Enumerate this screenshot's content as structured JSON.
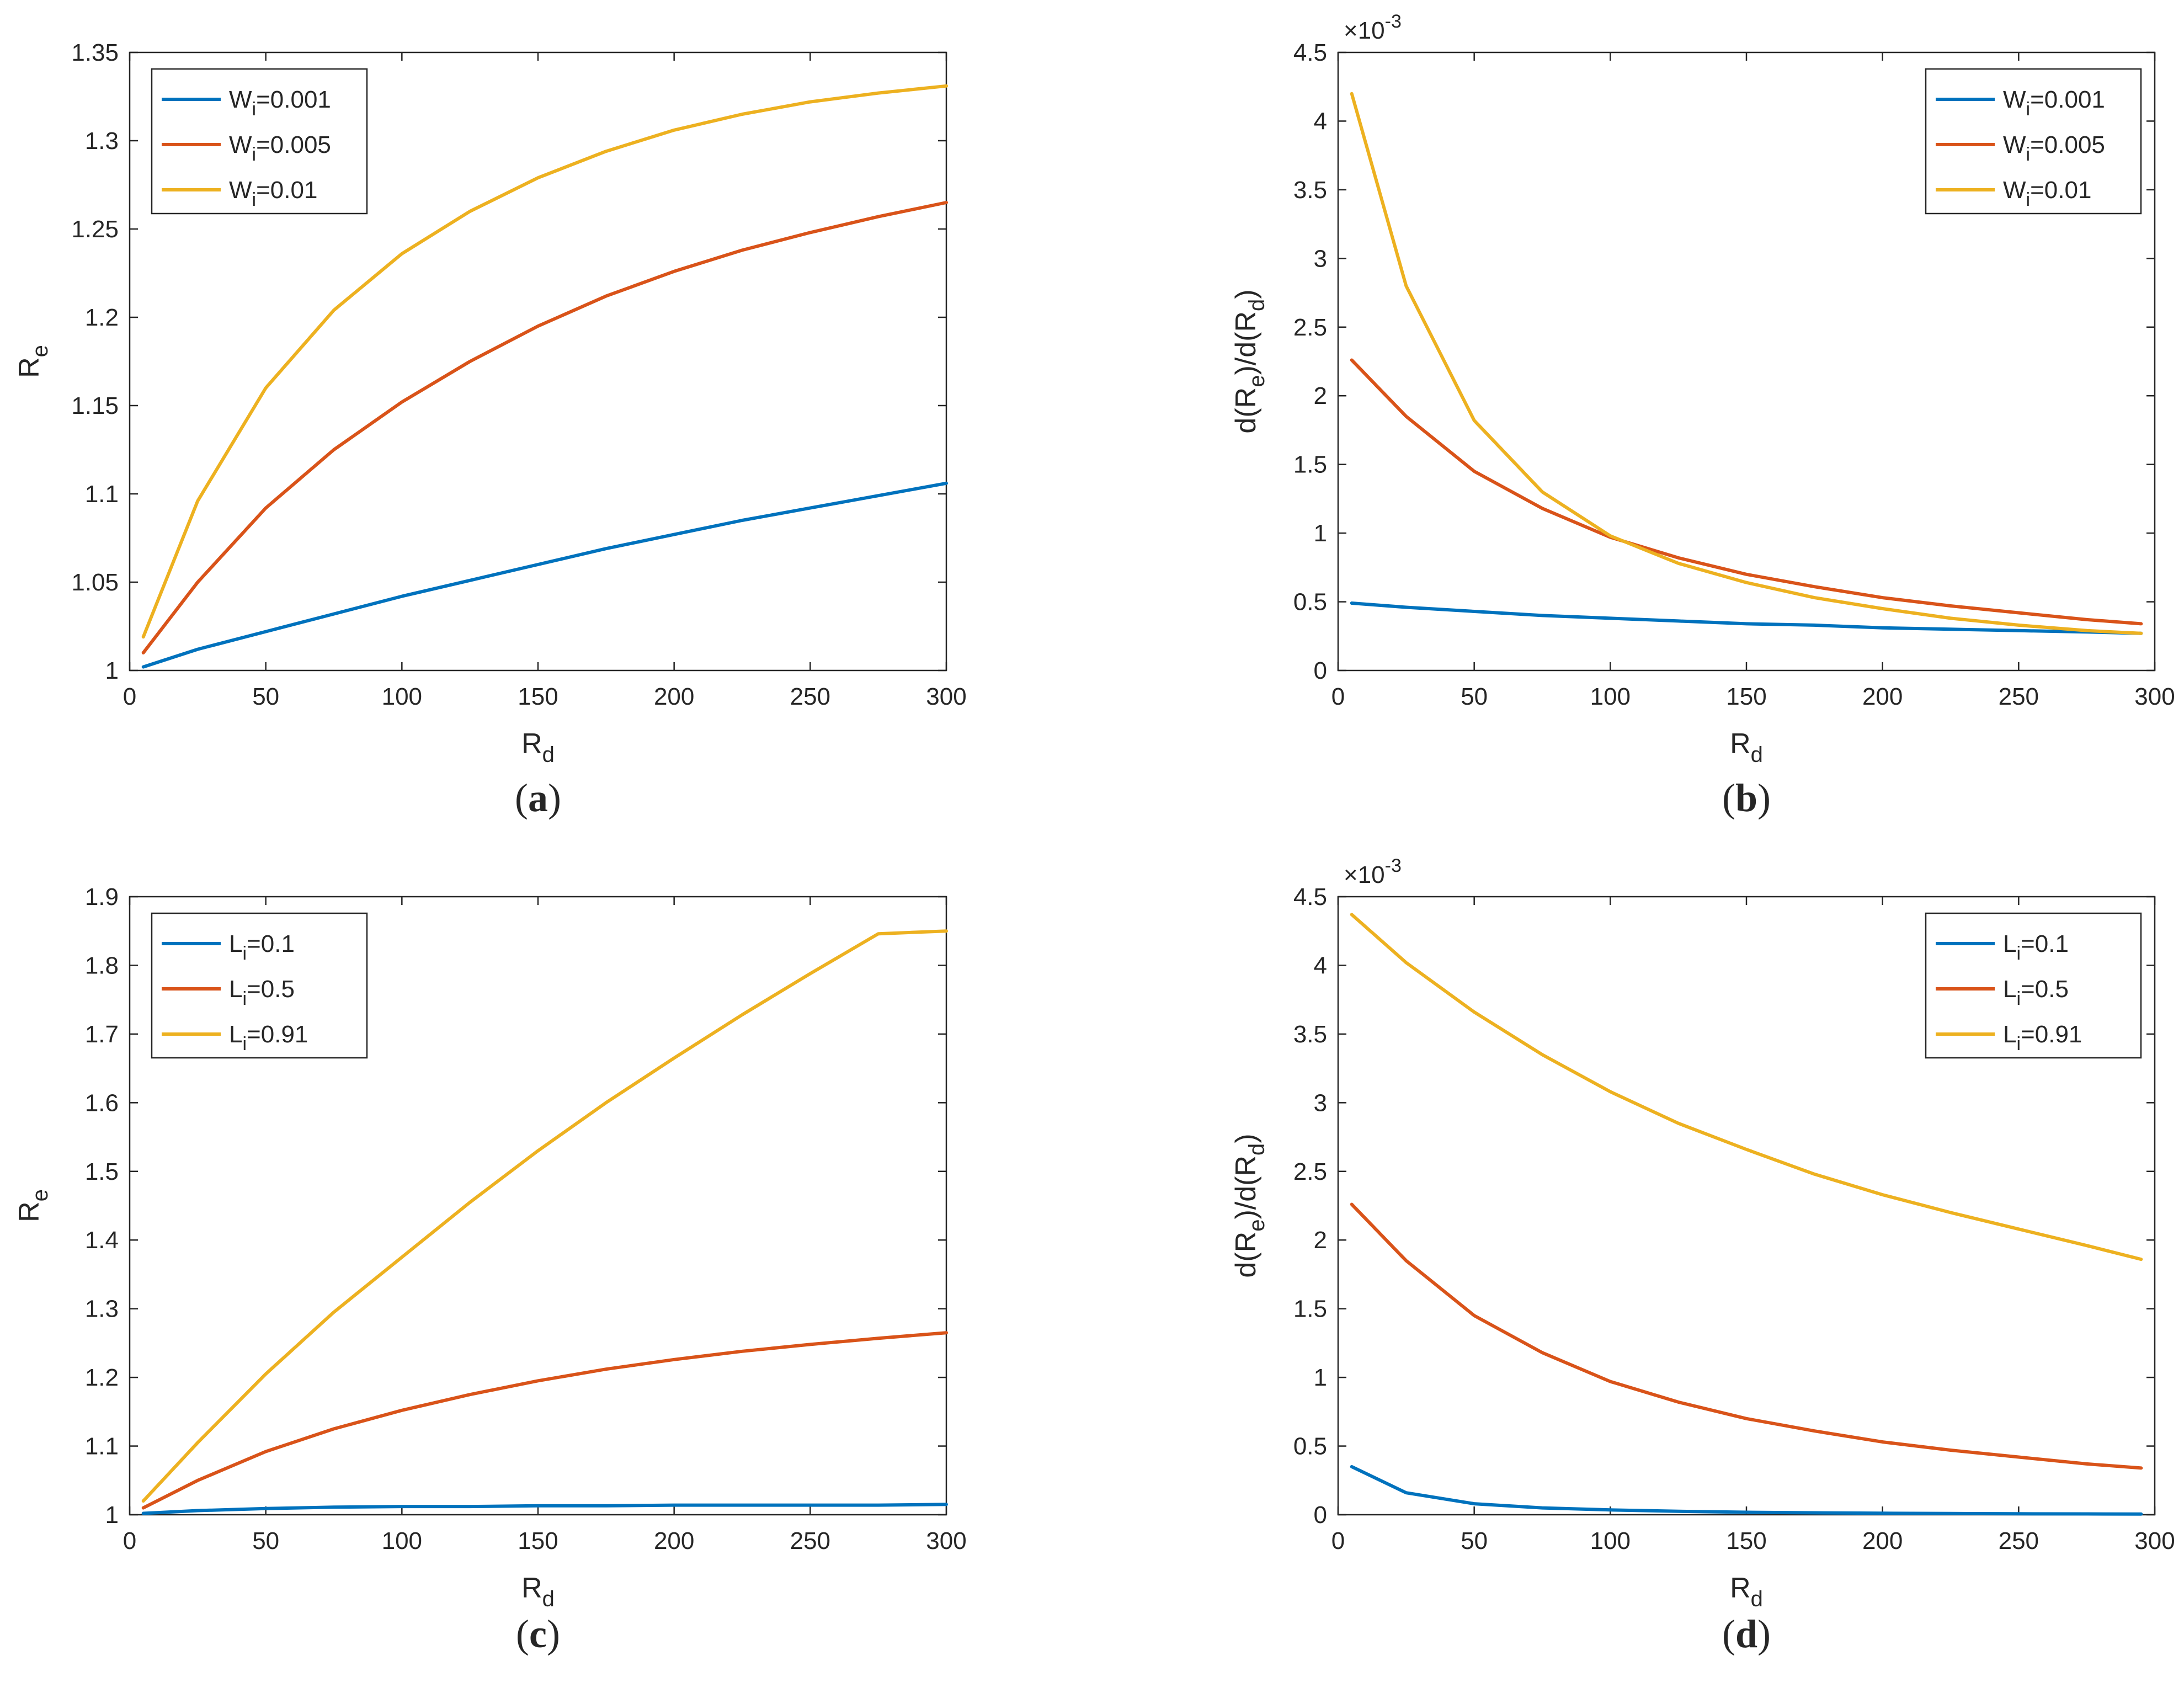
{
  "colors": {
    "blue": "#0072BD",
    "orange": "#D95319",
    "yellow": "#EDB120"
  },
  "chart_data": [
    {
      "id": "a",
      "type": "line",
      "panel_label": "a",
      "xlabel": "R",
      "xlabel_sub": "d",
      "ylabel": "R",
      "ylabel_sub": "e",
      "xlim": [
        0,
        300
      ],
      "ylim": [
        1,
        1.35
      ],
      "xticks": [
        0,
        50,
        100,
        150,
        200,
        250,
        300
      ],
      "yticks": [
        1,
        1.05,
        1.1,
        1.15,
        1.2,
        1.25,
        1.3,
        1.35
      ],
      "ytick_labels": [
        "1",
        "1.05",
        "1.1",
        "1.15",
        "1.2",
        "1.25",
        "1.3",
        "1.35"
      ],
      "exponent_label": "",
      "legend_position": "top-left",
      "x": [
        5,
        25,
        50,
        75,
        100,
        125,
        150,
        175,
        200,
        225,
        250,
        275,
        300
      ],
      "series": [
        {
          "name": "W",
          "sub": "i",
          "value": "=0.001",
          "color": "#0072BD",
          "values": [
            1.002,
            1.012,
            1.022,
            1.032,
            1.042,
            1.051,
            1.06,
            1.069,
            1.077,
            1.085,
            1.092,
            1.099,
            1.106
          ]
        },
        {
          "name": "W",
          "sub": "i",
          "value": "=0.005",
          "color": "#D95319",
          "values": [
            1.01,
            1.05,
            1.092,
            1.125,
            1.152,
            1.175,
            1.195,
            1.212,
            1.226,
            1.238,
            1.248,
            1.257,
            1.265
          ]
        },
        {
          "name": "W",
          "sub": "i",
          "value": "=0.01",
          "color": "#EDB120",
          "values": [
            1.019,
            1.096,
            1.16,
            1.204,
            1.236,
            1.26,
            1.279,
            1.294,
            1.306,
            1.315,
            1.322,
            1.327,
            1.331
          ]
        }
      ]
    },
    {
      "id": "b",
      "type": "line",
      "panel_label": "b",
      "xlabel": "R",
      "xlabel_sub": "d",
      "ylabel": "d(R",
      "ylabel_sub": "e",
      "ylabel_mid": ")/d(R",
      "ylabel_sub2": "d",
      "ylabel_end": ")",
      "xlim": [
        0,
        300
      ],
      "ylim": [
        0,
        4.5
      ],
      "xticks": [
        0,
        50,
        100,
        150,
        200,
        250,
        300
      ],
      "yticks": [
        0,
        0.5,
        1,
        1.5,
        2,
        2.5,
        3,
        3.5,
        4,
        4.5
      ],
      "ytick_labels": [
        "0",
        "0.5",
        "1",
        "1.5",
        "2",
        "2.5",
        "3",
        "3.5",
        "4",
        "4.5"
      ],
      "exponent_label": "×10",
      "exponent_sup": "-3",
      "legend_position": "top-right",
      "x": [
        5,
        25,
        50,
        75,
        100,
        125,
        150,
        175,
        200,
        225,
        250,
        275,
        295
      ],
      "series": [
        {
          "name": "W",
          "sub": "i",
          "value": "=0.001",
          "color": "#0072BD",
          "values": [
            0.49,
            0.46,
            0.43,
            0.4,
            0.38,
            0.36,
            0.34,
            0.33,
            0.31,
            0.3,
            0.29,
            0.28,
            0.27
          ]
        },
        {
          "name": "W",
          "sub": "i",
          "value": "=0.005",
          "color": "#D95319",
          "values": [
            2.26,
            1.85,
            1.45,
            1.18,
            0.97,
            0.82,
            0.7,
            0.61,
            0.53,
            0.47,
            0.42,
            0.37,
            0.34
          ]
        },
        {
          "name": "W",
          "sub": "i",
          "value": "=0.01",
          "color": "#EDB120",
          "values": [
            4.2,
            2.8,
            1.82,
            1.3,
            0.98,
            0.78,
            0.64,
            0.53,
            0.45,
            0.38,
            0.33,
            0.29,
            0.27
          ]
        }
      ]
    },
    {
      "id": "c",
      "type": "line",
      "panel_label": "c",
      "xlabel": "R",
      "xlabel_sub": "d",
      "ylabel": "R",
      "ylabel_sub": "e",
      "xlim": [
        0,
        300
      ],
      "ylim": [
        1,
        1.9
      ],
      "xticks": [
        0,
        50,
        100,
        150,
        200,
        250,
        300
      ],
      "yticks": [
        1,
        1.1,
        1.2,
        1.3,
        1.4,
        1.5,
        1.6,
        1.7,
        1.8,
        1.9
      ],
      "ytick_labels": [
        "1",
        "1.1",
        "1.2",
        "1.3",
        "1.4",
        "1.5",
        "1.6",
        "1.7",
        "1.8",
        "1.9"
      ],
      "exponent_label": "",
      "legend_position": "top-left",
      "x": [
        5,
        25,
        50,
        75,
        100,
        125,
        150,
        175,
        200,
        225,
        250,
        275,
        300
      ],
      "series": [
        {
          "name": "L",
          "sub": "i",
          "value": "=0.1",
          "color": "#0072BD",
          "values": [
            1.002,
            1.006,
            1.009,
            1.011,
            1.012,
            1.012,
            1.013,
            1.013,
            1.014,
            1.014,
            1.014,
            1.014,
            1.015
          ]
        },
        {
          "name": "L",
          "sub": "i",
          "value": "=0.5",
          "color": "#D95319",
          "values": [
            1.01,
            1.05,
            1.092,
            1.125,
            1.152,
            1.175,
            1.195,
            1.212,
            1.226,
            1.238,
            1.248,
            1.257,
            1.265
          ]
        },
        {
          "name": "L",
          "sub": "i",
          "value": "=0.91",
          "color": "#EDB120",
          "values": [
            1.02,
            1.105,
            1.205,
            1.295,
            1.375,
            1.455,
            1.53,
            1.6,
            1.665,
            1.728,
            1.788,
            1.846,
            1.85
          ]
        }
      ]
    },
    {
      "id": "d",
      "type": "line",
      "panel_label": "d",
      "xlabel": "R",
      "xlabel_sub": "d",
      "ylabel": "d(R",
      "ylabel_sub": "e",
      "ylabel_mid": ")/d(R",
      "ylabel_sub2": "d",
      "ylabel_end": ")",
      "xlim": [
        0,
        300
      ],
      "ylim": [
        0,
        4.5
      ],
      "xticks": [
        0,
        50,
        100,
        150,
        200,
        250,
        300
      ],
      "yticks": [
        0,
        0.5,
        1,
        1.5,
        2,
        2.5,
        3,
        3.5,
        4,
        4.5
      ],
      "ytick_labels": [
        "0",
        "0.5",
        "1",
        "1.5",
        "2",
        "2.5",
        "3",
        "3.5",
        "4",
        "4.5"
      ],
      "exponent_label": "×10",
      "exponent_sup": "-3",
      "legend_position": "top-right",
      "x": [
        5,
        25,
        50,
        75,
        100,
        125,
        150,
        175,
        200,
        225,
        250,
        275,
        295
      ],
      "series": [
        {
          "name": "L",
          "sub": "i",
          "value": "=0.1",
          "color": "#0072BD",
          "values": [
            0.35,
            0.16,
            0.08,
            0.05,
            0.035,
            0.025,
            0.018,
            0.014,
            0.011,
            0.009,
            0.007,
            0.006,
            0.005
          ]
        },
        {
          "name": "L",
          "sub": "i",
          "value": "=0.5",
          "color": "#D95319",
          "values": [
            2.26,
            1.85,
            1.45,
            1.18,
            0.97,
            0.82,
            0.7,
            0.61,
            0.53,
            0.47,
            0.42,
            0.37,
            0.34
          ]
        },
        {
          "name": "L",
          "sub": "i",
          "value": "=0.91",
          "color": "#EDB120",
          "values": [
            4.37,
            4.02,
            3.66,
            3.35,
            3.08,
            2.85,
            2.66,
            2.48,
            2.33,
            2.2,
            2.08,
            1.96,
            1.86
          ]
        }
      ]
    }
  ]
}
